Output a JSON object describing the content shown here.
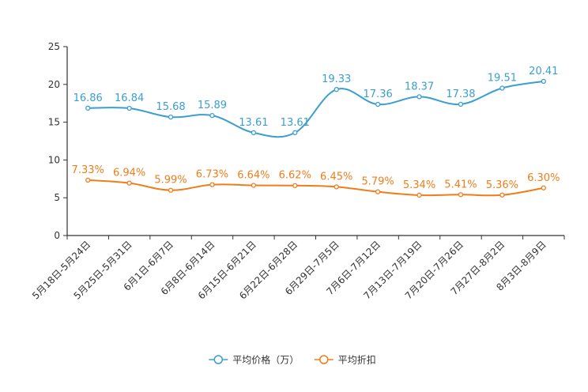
{
  "chart_data": {
    "type": "line",
    "categories": [
      "5月18日-5月24日",
      "5月25日-5月31日",
      "6月1日-6月7日",
      "6月8日-6月14日",
      "6月15日-6月21日",
      "6月22日-6月28日",
      "6月29日-7月5日",
      "7月6日-7月12日",
      "7月13日-7月19日",
      "7月20日-7月26日",
      "7月27日-8月2日",
      "8月3日-8月9日"
    ],
    "ylim": [
      0,
      25
    ],
    "yticks": [
      0,
      5,
      10,
      15,
      20,
      25
    ],
    "series": [
      {
        "name": "平均价格（万）",
        "color": "#3a9fd0",
        "values": [
          16.86,
          16.84,
          15.68,
          15.89,
          13.61,
          13.61,
          19.33,
          17.36,
          18.37,
          17.38,
          19.51,
          20.41
        ],
        "labels": [
          "16.86",
          "16.84",
          "15.68",
          "15.89",
          "13.61",
          "13.61",
          "19.33",
          "17.36",
          "18.37",
          "17.38",
          "19.51",
          "20.41"
        ]
      },
      {
        "name": "平均折扣",
        "color": "#f07d1a",
        "values": [
          7.33,
          6.94,
          5.99,
          6.73,
          6.64,
          6.62,
          6.45,
          5.79,
          5.34,
          5.41,
          5.36,
          6.3
        ],
        "labels": [
          "7.33%",
          "6.94%",
          "5.99%",
          "6.73%",
          "6.64%",
          "6.62%",
          "6.45%",
          "5.79%",
          "5.34%",
          "5.41%",
          "5.36%",
          "6.30%"
        ]
      }
    ],
    "legend_position": "bottom-center",
    "grid": false
  }
}
